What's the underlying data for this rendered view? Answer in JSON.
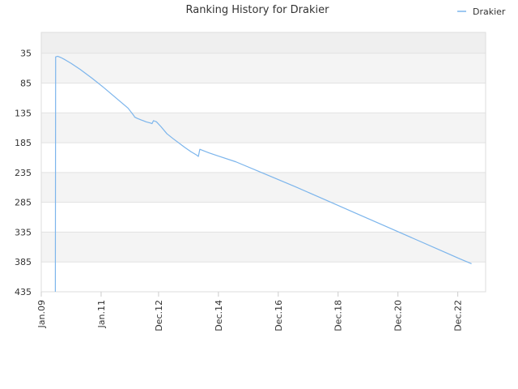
{
  "chart_data": {
    "type": "line",
    "title": "Ranking History for Drakier",
    "xlabel": "",
    "ylabel": "",
    "legend": {
      "position": "top-right",
      "entries": [
        "Drakier"
      ]
    },
    "x_tick_labels": [
      "Jan.09",
      "Jan.11",
      "Dec.12",
      "Dec.14",
      "Dec.16",
      "Dec.18",
      "Dec.20",
      "Dec.22"
    ],
    "x_tick_years": [
      2009.0,
      2011.0,
      2012.92,
      2014.92,
      2016.92,
      2018.92,
      2020.92,
      2022.92
    ],
    "xlim": [
      2009.0,
      2023.85
    ],
    "y_tick_labels": [
      "35",
      "85",
      "135",
      "185",
      "235",
      "285",
      "335",
      "385",
      "435"
    ],
    "y_ticks": [
      35,
      85,
      135,
      185,
      235,
      285,
      335,
      385,
      435
    ],
    "ylim": [
      435,
      0
    ],
    "y_inverted": true,
    "grid": true,
    "series_color": "#7cb5ec",
    "series": [
      {
        "name": "Drakier",
        "x": [
          2009.47,
          2009.48,
          2009.55,
          2009.65,
          2009.8,
          2010.0,
          2010.3,
          2010.7,
          2011.1,
          2011.5,
          2011.9,
          2012.1,
          2012.12,
          2012.2,
          2012.25,
          2012.3,
          2012.35,
          2012.4,
          2012.5,
          2012.65,
          2012.7,
          2012.75,
          2012.85,
          2013.0,
          2013.2,
          2013.4,
          2013.8,
          2014.0,
          2014.2,
          2014.25,
          2014.3,
          2014.4,
          2014.6,
          2014.9,
          2015.5,
          2016.5,
          2017.5,
          2018.5,
          2019.5,
          2020.5,
          2021.5,
          2022.5,
          2023.0,
          2023.38
        ],
        "y": [
          435,
          41,
          40,
          42,
          46,
          52,
          62,
          77,
          93,
          110,
          127,
          140,
          142,
          144,
          145,
          146,
          147,
          148,
          150,
          152,
          153,
          148,
          150,
          158,
          170,
          178,
          193,
          200,
          206,
          208,
          196,
          198,
          202,
          207,
          217,
          238,
          259,
          281,
          303,
          325,
          347,
          369,
          380,
          388
        ]
      }
    ]
  }
}
